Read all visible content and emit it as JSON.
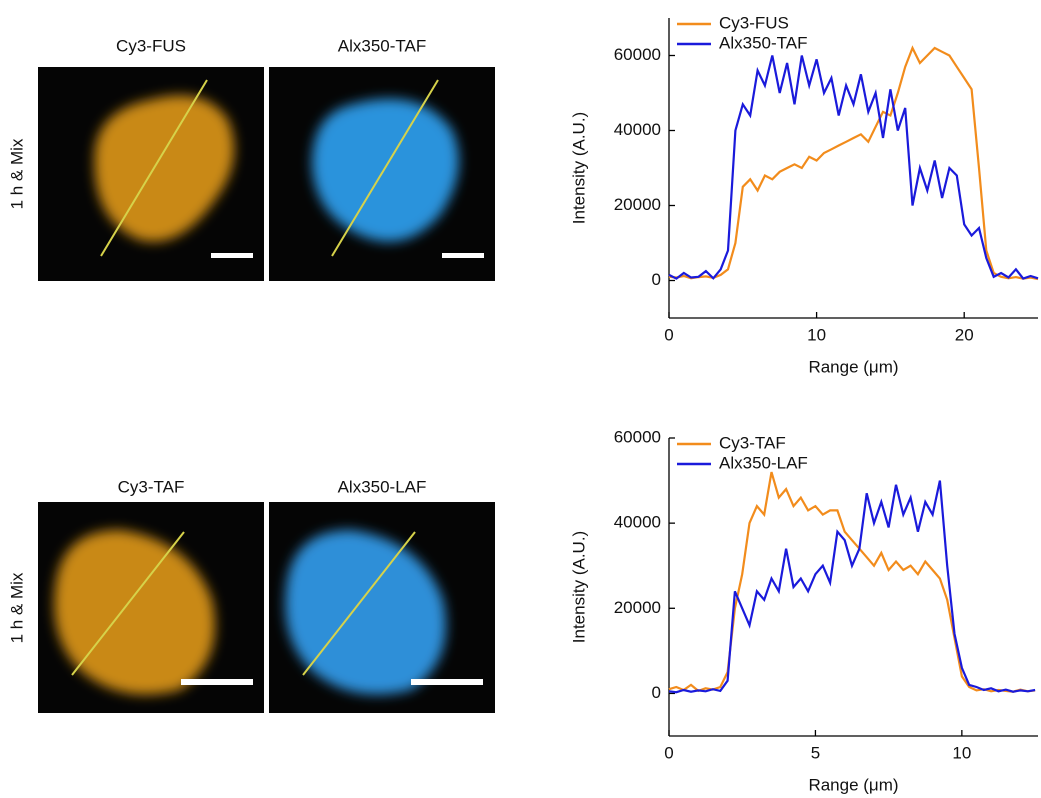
{
  "image_rows": [
    {
      "row_label": "1 h & Mix",
      "image_labels": [
        "Cy3-FUS",
        "Alx350-TAF"
      ]
    },
    {
      "row_label": "1 h & Mix",
      "image_labels": [
        "Cy3-TAF",
        "Alx350-LAF"
      ]
    }
  ],
  "chart_data": [
    {
      "type": "line",
      "xlabel": "Range (μm)",
      "ylabel": "Intensity (A.U.)",
      "xlim": [
        0,
        25
      ],
      "xticks": [
        0,
        10,
        20
      ],
      "ylim": [
        -10000,
        70000
      ],
      "yticks": [
        0,
        20000,
        40000,
        60000
      ],
      "legend": "upper left",
      "x": [
        0,
        0.5,
        1,
        1.5,
        2,
        2.5,
        3,
        3.5,
        4,
        4.5,
        5,
        5.5,
        6,
        6.5,
        7,
        7.5,
        8,
        8.5,
        9,
        9.5,
        10,
        10.5,
        11,
        11.5,
        12,
        12.5,
        13,
        13.5,
        14,
        14.5,
        15,
        15.5,
        16,
        16.5,
        17,
        17.5,
        18,
        18.5,
        19,
        19.5,
        20,
        20.5,
        21,
        21.5,
        22,
        22.5,
        23,
        23.5,
        24,
        24.5,
        25
      ],
      "series": [
        {
          "name": "Cy3-FUS",
          "color": "#f28c1c",
          "values": [
            1000,
            800,
            1200,
            600,
            900,
            1100,
            700,
            1500,
            3000,
            10000,
            25000,
            27000,
            24000,
            28000,
            27000,
            29000,
            30000,
            31000,
            30000,
            33000,
            32000,
            34000,
            35000,
            36000,
            37000,
            38000,
            39000,
            37000,
            41000,
            45000,
            44000,
            50000,
            57000,
            62000,
            58000,
            60000,
            62000,
            61000,
            60000,
            57000,
            54000,
            51000,
            30000,
            8000,
            2000,
            1000,
            600,
            900,
            500,
            800,
            400
          ]
        },
        {
          "name": "Alx350-TAF",
          "color": "#1a1adb",
          "values": [
            1500,
            500,
            2000,
            800,
            1000,
            2500,
            600,
            3000,
            8000,
            40000,
            47000,
            44000,
            56000,
            52000,
            60000,
            50000,
            58000,
            47000,
            60000,
            52000,
            59000,
            50000,
            54000,
            44000,
            52000,
            47000,
            55000,
            45000,
            50000,
            38000,
            51000,
            40000,
            46000,
            20000,
            30000,
            24000,
            32000,
            22000,
            30000,
            28000,
            15000,
            12000,
            14000,
            6000,
            1000,
            2000,
            800,
            3000,
            500,
            1200,
            600
          ]
        }
      ]
    },
    {
      "type": "line",
      "xlabel": "Range (μm)",
      "ylabel": "Intensity (A.U.)",
      "xlim": [
        0,
        12.6
      ],
      "xticks": [
        0,
        5,
        10
      ],
      "ylim": [
        -10000,
        60000
      ],
      "yticks": [
        0,
        20000,
        40000,
        60000
      ],
      "legend": "upper left",
      "x": [
        0,
        0.25,
        0.5,
        0.75,
        1,
        1.25,
        1.5,
        1.75,
        2,
        2.25,
        2.5,
        2.75,
        3,
        3.25,
        3.5,
        3.75,
        4,
        4.25,
        4.5,
        4.75,
        5,
        5.25,
        5.5,
        5.75,
        6,
        6.25,
        6.5,
        6.75,
        7,
        7.25,
        7.5,
        7.75,
        8,
        8.25,
        8.5,
        8.75,
        9,
        9.25,
        9.5,
        9.75,
        10,
        10.25,
        10.5,
        10.75,
        11,
        11.25,
        11.5,
        11.75,
        12,
        12.25,
        12.5
      ],
      "series": [
        {
          "name": "Cy3-TAF",
          "color": "#f28c1c",
          "values": [
            1000,
            1500,
            800,
            2000,
            600,
            1200,
            900,
            1500,
            5000,
            20000,
            28000,
            40000,
            44000,
            42000,
            52000,
            46000,
            48000,
            44000,
            46000,
            43000,
            44000,
            42000,
            43000,
            43000,
            38000,
            36000,
            34000,
            32000,
            30000,
            33000,
            29000,
            31000,
            29000,
            30000,
            28000,
            31000,
            29000,
            27000,
            22000,
            13000,
            4000,
            1500,
            700,
            1000,
            500,
            800,
            600,
            400,
            900,
            500,
            700
          ]
        },
        {
          "name": "Alx350-LAF",
          "color": "#1a1adb",
          "values": [
            500,
            300,
            800,
            400,
            700,
            500,
            1000,
            600,
            3000,
            24000,
            20000,
            16000,
            24000,
            22000,
            27000,
            24000,
            34000,
            25000,
            27000,
            24000,
            28000,
            30000,
            26000,
            38000,
            36000,
            30000,
            34000,
            47000,
            40000,
            45000,
            39000,
            49000,
            42000,
            46000,
            38000,
            45000,
            42000,
            50000,
            30000,
            14000,
            6000,
            2000,
            1500,
            800,
            1200,
            500,
            900,
            400,
            700,
            500,
            800
          ]
        }
      ]
    }
  ]
}
